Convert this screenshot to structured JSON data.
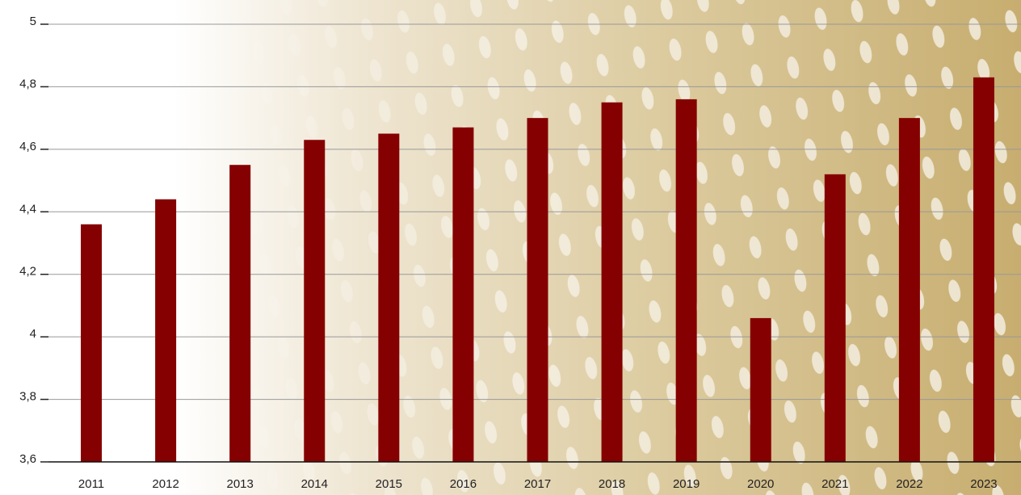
{
  "chart_data": {
    "type": "bar",
    "categories": [
      "2011",
      "2012",
      "2013",
      "2014",
      "2015",
      "2016",
      "2017",
      "2018",
      "2019",
      "2020",
      "2021",
      "2022",
      "2023"
    ],
    "values": [
      4.36,
      4.44,
      4.55,
      4.63,
      4.65,
      4.67,
      4.7,
      4.75,
      4.76,
      4.06,
      4.52,
      4.7,
      4.83
    ],
    "color": "#850000",
    "ylim": [
      3.6,
      5
    ],
    "yticks": [
      {
        "value": 3.6,
        "label": "3,6"
      },
      {
        "value": 3.8,
        "label": "3,8"
      },
      4,
      {
        "value": 4.2,
        "label": "4,2"
      },
      {
        "value": 4.4,
        "label": "4,4"
      },
      {
        "value": 4.6,
        "label": "4,6"
      },
      {
        "value": 4.8,
        "label": "4,8"
      },
      5
    ],
    "grid": true
  }
}
